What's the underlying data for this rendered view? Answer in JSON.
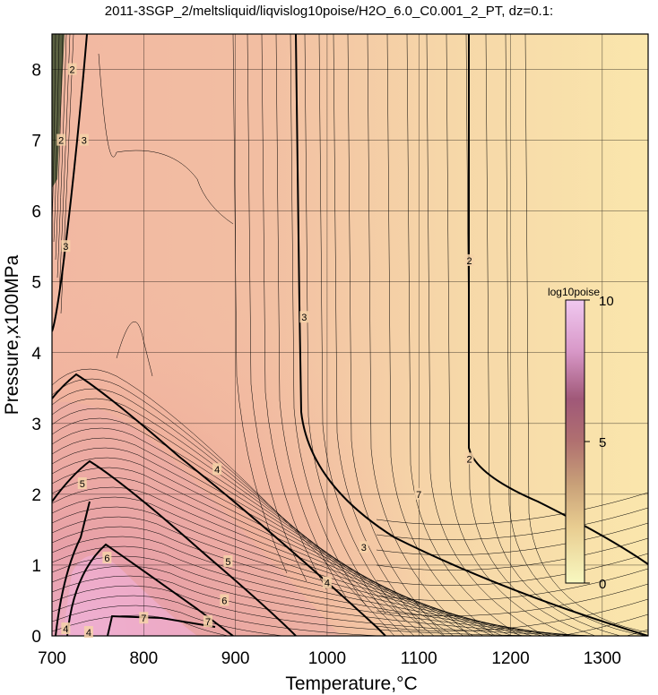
{
  "chart_data": {
    "type": "contour",
    "title": "2011-3SGP_2/meltsliquid/liqvislog10poise/H2O_6.0_C0.001_2_PT, dz=0.1:",
    "xlabel": "Temperature,°C",
    "ylabel": "Pressure,x100MPa",
    "xlim": [
      700,
      1350
    ],
    "ylim": [
      0,
      8.5
    ],
    "x_ticks": [
      700,
      800,
      900,
      1000,
      1100,
      1200,
      1300
    ],
    "y_ticks": [
      0,
      1,
      2,
      3,
      4,
      5,
      6,
      7,
      8
    ],
    "grid": true,
    "colorbar": {
      "label": "log10poise",
      "range": [
        0,
        10
      ],
      "ticks": [
        0,
        5,
        10
      ],
      "colors": [
        "#f8f8c0",
        "#e8c890",
        "#c8a080",
        "#b07070",
        "#a05878",
        "#d898c8",
        "#f0c8f0"
      ]
    },
    "contour_labels": [
      {
        "T": 722,
        "P": 8.0,
        "text": "2"
      },
      {
        "T": 710,
        "P": 7.0,
        "text": "2"
      },
      {
        "T": 735,
        "P": 7.0,
        "text": "3"
      },
      {
        "T": 715,
        "P": 5.5,
        "text": "3"
      },
      {
        "T": 975,
        "P": 4.5,
        "text": "3"
      },
      {
        "T": 1155,
        "P": 5.3,
        "text": "2"
      },
      {
        "T": 1155,
        "P": 2.5,
        "text": "2"
      },
      {
        "T": 1040,
        "P": 1.25,
        "text": "3"
      },
      {
        "T": 1000,
        "P": 0.75,
        "text": "4"
      },
      {
        "T": 880,
        "P": 2.35,
        "text": "4"
      },
      {
        "T": 733,
        "P": 2.15,
        "text": "5"
      },
      {
        "T": 892,
        "P": 1.05,
        "text": "5"
      },
      {
        "T": 760,
        "P": 1.1,
        "text": "6"
      },
      {
        "T": 888,
        "P": 0.5,
        "text": "6"
      },
      {
        "T": 800,
        "P": 0.25,
        "text": "7"
      },
      {
        "T": 870,
        "P": 0.2,
        "text": "7"
      },
      {
        "T": 1100,
        "P": 2.0,
        "text": "7"
      },
      {
        "T": 715,
        "P": 0.1,
        "text": "4"
      },
      {
        "T": 740,
        "P": 0.05,
        "text": "4"
      }
    ]
  }
}
